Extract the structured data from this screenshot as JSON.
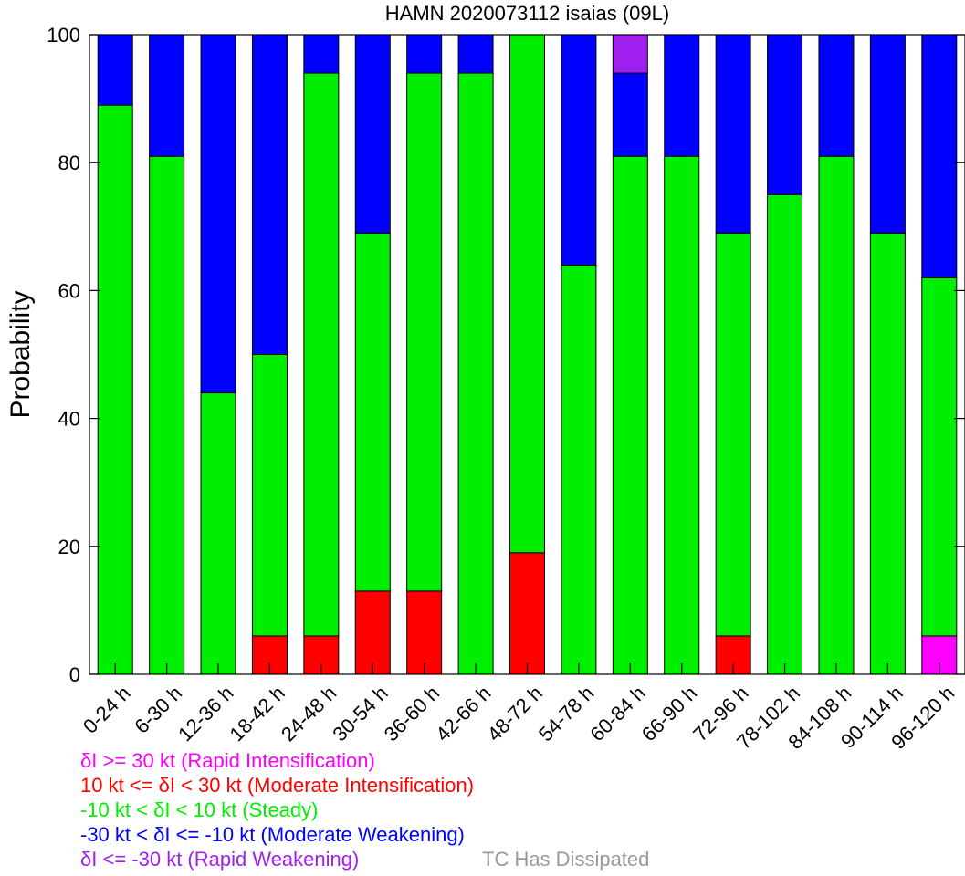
{
  "chart_data": {
    "type": "bar",
    "stacked": true,
    "title": "HAMN 2020073112 isaias (09L)",
    "xlabel": "",
    "ylabel": "Probability",
    "ylim": [
      0,
      100
    ],
    "yticks": [
      0,
      20,
      40,
      60,
      80,
      100
    ],
    "grid": false,
    "categories": [
      "0-24 h",
      "6-30 h",
      "12-36 h",
      "18-42 h",
      "24-48 h",
      "30-54 h",
      "36-60 h",
      "42-66 h",
      "48-72 h",
      "54-78 h",
      "60-84 h",
      "66-90 h",
      "72-96 h",
      "78-102 h",
      "84-108 h",
      "90-114 h",
      "96-120 h"
    ],
    "series": [
      {
        "name": "δI >= 30 kt (Rapid Intensification)",
        "color": "#ff00ff",
        "values": [
          0,
          0,
          0,
          0,
          0,
          0,
          0,
          0,
          0,
          0,
          0,
          0,
          0,
          0,
          0,
          0,
          6
        ]
      },
      {
        "name": "10 kt <= δI < 30 kt (Moderate Intensification)",
        "color": "#ff0000",
        "values": [
          0,
          0,
          0,
          6,
          6,
          13,
          13,
          0,
          19,
          0,
          0,
          0,
          6,
          0,
          0,
          0,
          0
        ]
      },
      {
        "name": "-10 kt < δI < 10 kt (Steady)",
        "color": "#00ee00",
        "values": [
          89,
          81,
          44,
          44,
          88,
          56,
          81,
          94,
          81,
          64,
          81,
          81,
          63,
          75,
          81,
          69,
          56
        ]
      },
      {
        "name": "-30 kt < δI <= -10 kt (Moderate Weakening)",
        "color": "#0000ff",
        "values": [
          11,
          19,
          56,
          50,
          6,
          31,
          6,
          6,
          0,
          36,
          13,
          19,
          31,
          25,
          19,
          31,
          38
        ]
      },
      {
        "name": "δI <= -30 kt (Rapid Weakening)",
        "color": "#a020f0",
        "values": [
          0,
          0,
          0,
          0,
          0,
          0,
          0,
          0,
          0,
          0,
          6,
          0,
          0,
          0,
          0,
          0,
          0
        ]
      }
    ],
    "extra_legend": {
      "label": "TC Has Dissipated",
      "color": "#999999"
    }
  }
}
